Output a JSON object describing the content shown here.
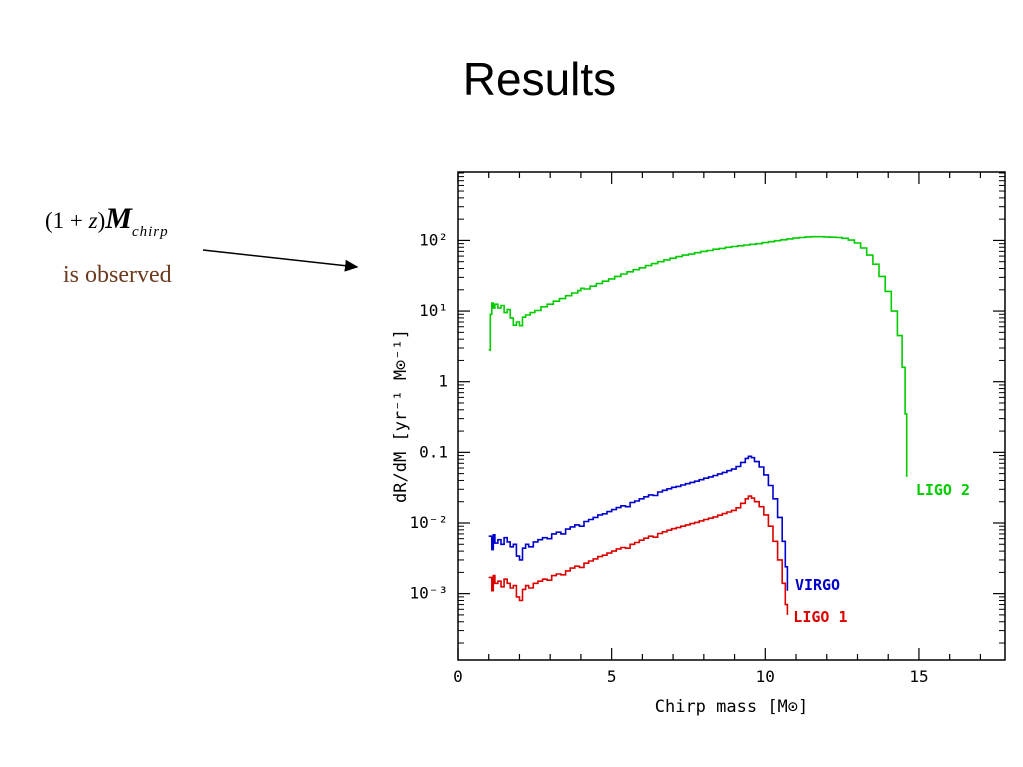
{
  "slide": {
    "title": "Results",
    "formula": {
      "open": "(1 + ",
      "z": "z",
      "close": ")",
      "symbol": "M",
      "subscript": "chirp"
    },
    "observed": "is  observed",
    "observed_color": "#6b3a1e"
  },
  "chart_data": {
    "type": "line",
    "title": "",
    "xlabel": "Chirp mass [M⊙]",
    "ylabel": "dR/dM [yr⁻¹ M⊙⁻¹]",
    "xlim": [
      0,
      17.8
    ],
    "ylog": true,
    "ylim": [
      0.000115,
      930
    ],
    "grid": false,
    "x_major_ticks": [
      0,
      5,
      10,
      15
    ],
    "x_minor_step": 1,
    "y_tick_labels": [
      {
        "log": 2,
        "label": "10²"
      },
      {
        "log": 1,
        "label": "10¹"
      },
      {
        "log": 0,
        "label": "1"
      },
      {
        "log": -1,
        "label": "0.1"
      },
      {
        "log": -2,
        "label": "10⁻²"
      },
      {
        "log": -3,
        "label": "10⁻³"
      }
    ],
    "legend_position": "inside-right",
    "series": [
      {
        "name": "LIGO 2",
        "color": "#00cc00",
        "label_fx": 0.837,
        "label_fy": 0.652,
        "points": [
          [
            1.0,
            2.8
          ],
          [
            1.05,
            9
          ],
          [
            1.1,
            13
          ],
          [
            1.15,
            11
          ],
          [
            1.2,
            12.5
          ],
          [
            1.3,
            11
          ],
          [
            1.4,
            12
          ],
          [
            1.5,
            9.5
          ],
          [
            1.6,
            10.5
          ],
          [
            1.7,
            8
          ],
          [
            1.8,
            6.3
          ],
          [
            1.9,
            7
          ],
          [
            2.0,
            6.2
          ],
          [
            2.1,
            8.2
          ],
          [
            2.2,
            8.8
          ],
          [
            2.35,
            9.5
          ],
          [
            2.5,
            10.2
          ],
          [
            2.7,
            11.5
          ],
          [
            2.9,
            12.5
          ],
          [
            3.1,
            13.8
          ],
          [
            3.3,
            15
          ],
          [
            3.5,
            16.5
          ],
          [
            3.7,
            18
          ],
          [
            3.9,
            19.5
          ],
          [
            4.0,
            21
          ],
          [
            4.1,
            20.5
          ],
          [
            4.3,
            22.5
          ],
          [
            4.5,
            24.5
          ],
          [
            4.7,
            26.5
          ],
          [
            4.9,
            28.5
          ],
          [
            5.1,
            31
          ],
          [
            5.3,
            33.5
          ],
          [
            5.5,
            36
          ],
          [
            5.7,
            38.5
          ],
          [
            5.9,
            41
          ],
          [
            6.1,
            44
          ],
          [
            6.3,
            47
          ],
          [
            6.5,
            50
          ],
          [
            6.7,
            53
          ],
          [
            6.9,
            56
          ],
          [
            7.1,
            59
          ],
          [
            7.3,
            62
          ],
          [
            7.5,
            64
          ],
          [
            7.7,
            67
          ],
          [
            7.9,
            70
          ],
          [
            8.1,
            72
          ],
          [
            8.3,
            75
          ],
          [
            8.5,
            77
          ],
          [
            8.7,
            80
          ],
          [
            8.9,
            82
          ],
          [
            9.1,
            84
          ],
          [
            9.3,
            86
          ],
          [
            9.5,
            88
          ],
          [
            9.7,
            90
          ],
          [
            9.9,
            93
          ],
          [
            10.1,
            96
          ],
          [
            10.3,
            99
          ],
          [
            10.5,
            102
          ],
          [
            10.7,
            105
          ],
          [
            10.9,
            108
          ],
          [
            11.1,
            110
          ],
          [
            11.3,
            112
          ],
          [
            11.5,
            113
          ],
          [
            11.7,
            113
          ],
          [
            11.9,
            112
          ],
          [
            12.1,
            111
          ],
          [
            12.3,
            110
          ],
          [
            12.5,
            107
          ],
          [
            12.7,
            101
          ],
          [
            12.9,
            92
          ],
          [
            13.1,
            78
          ],
          [
            13.3,
            62
          ],
          [
            13.5,
            46
          ],
          [
            13.7,
            31
          ],
          [
            13.9,
            19
          ],
          [
            14.1,
            10
          ],
          [
            14.3,
            4.5
          ],
          [
            14.45,
            1.6
          ],
          [
            14.55,
            0.35
          ],
          [
            14.6,
            0.045
          ]
        ]
      },
      {
        "name": "VIRGO",
        "color": "#0000cc",
        "label_fx": 0.616,
        "label_fy": 0.846,
        "points": [
          [
            1.0,
            0.0065
          ],
          [
            1.1,
            0.0042
          ],
          [
            1.15,
            0.0068
          ],
          [
            1.2,
            0.0052
          ],
          [
            1.3,
            0.0058
          ],
          [
            1.4,
            0.005
          ],
          [
            1.5,
            0.0062
          ],
          [
            1.6,
            0.0054
          ],
          [
            1.7,
            0.0046
          ],
          [
            1.8,
            0.005
          ],
          [
            1.9,
            0.0034
          ],
          [
            2.0,
            0.003
          ],
          [
            2.1,
            0.0044
          ],
          [
            2.2,
            0.005
          ],
          [
            2.3,
            0.0046
          ],
          [
            2.45,
            0.0054
          ],
          [
            2.6,
            0.0058
          ],
          [
            2.75,
            0.0062
          ],
          [
            2.9,
            0.006
          ],
          [
            3.05,
            0.007
          ],
          [
            3.2,
            0.0074
          ],
          [
            3.35,
            0.007
          ],
          [
            3.5,
            0.0082
          ],
          [
            3.65,
            0.0088
          ],
          [
            3.8,
            0.0094
          ],
          [
            3.95,
            0.009
          ],
          [
            4.1,
            0.0105
          ],
          [
            4.25,
            0.0112
          ],
          [
            4.4,
            0.012
          ],
          [
            4.55,
            0.013
          ],
          [
            4.7,
            0.0135
          ],
          [
            4.85,
            0.0145
          ],
          [
            5.0,
            0.0155
          ],
          [
            5.15,
            0.0165
          ],
          [
            5.3,
            0.0175
          ],
          [
            5.45,
            0.017
          ],
          [
            5.6,
            0.0195
          ],
          [
            5.75,
            0.0205
          ],
          [
            5.9,
            0.022
          ],
          [
            6.05,
            0.0235
          ],
          [
            6.2,
            0.025
          ],
          [
            6.35,
            0.0245
          ],
          [
            6.5,
            0.0275
          ],
          [
            6.65,
            0.029
          ],
          [
            6.8,
            0.0305
          ],
          [
            6.95,
            0.032
          ],
          [
            7.1,
            0.033
          ],
          [
            7.25,
            0.0345
          ],
          [
            7.4,
            0.036
          ],
          [
            7.55,
            0.0375
          ],
          [
            7.7,
            0.039
          ],
          [
            7.85,
            0.041
          ],
          [
            8.0,
            0.043
          ],
          [
            8.15,
            0.045
          ],
          [
            8.3,
            0.047
          ],
          [
            8.45,
            0.0495
          ],
          [
            8.6,
            0.052
          ],
          [
            8.75,
            0.055
          ],
          [
            8.9,
            0.058
          ],
          [
            9.05,
            0.063
          ],
          [
            9.2,
            0.072
          ],
          [
            9.35,
            0.082
          ],
          [
            9.45,
            0.088
          ],
          [
            9.55,
            0.084
          ],
          [
            9.65,
            0.074
          ],
          [
            9.8,
            0.062
          ],
          [
            9.95,
            0.048
          ],
          [
            10.1,
            0.034
          ],
          [
            10.25,
            0.022
          ],
          [
            10.4,
            0.012
          ],
          [
            10.55,
            0.0055
          ],
          [
            10.65,
            0.0024
          ],
          [
            10.72,
            0.0011
          ]
        ]
      },
      {
        "name": "LIGO 1",
        "color": "#dd0000",
        "label_fx": 0.613,
        "label_fy": 0.912,
        "points": [
          [
            1.0,
            0.0017
          ],
          [
            1.1,
            0.0011
          ],
          [
            1.15,
            0.0018
          ],
          [
            1.2,
            0.0014
          ],
          [
            1.3,
            0.0015
          ],
          [
            1.4,
            0.00125
          ],
          [
            1.5,
            0.0016
          ],
          [
            1.6,
            0.0014
          ],
          [
            1.7,
            0.0012
          ],
          [
            1.8,
            0.0013
          ],
          [
            1.9,
            0.0009
          ],
          [
            2.0,
            0.0008
          ],
          [
            2.1,
            0.00115
          ],
          [
            2.2,
            0.0013
          ],
          [
            2.3,
            0.0012
          ],
          [
            2.45,
            0.0014
          ],
          [
            2.6,
            0.0015
          ],
          [
            2.75,
            0.0016
          ],
          [
            2.9,
            0.00155
          ],
          [
            3.05,
            0.0018
          ],
          [
            3.2,
            0.0019
          ],
          [
            3.35,
            0.00185
          ],
          [
            3.5,
            0.0021
          ],
          [
            3.65,
            0.0023
          ],
          [
            3.8,
            0.00245
          ],
          [
            3.95,
            0.00235
          ],
          [
            4.1,
            0.0027
          ],
          [
            4.25,
            0.0029
          ],
          [
            4.4,
            0.0031
          ],
          [
            4.55,
            0.00335
          ],
          [
            4.7,
            0.0035
          ],
          [
            4.85,
            0.00375
          ],
          [
            5.0,
            0.004
          ],
          [
            5.15,
            0.0043
          ],
          [
            5.3,
            0.0045
          ],
          [
            5.45,
            0.0044
          ],
          [
            5.6,
            0.005
          ],
          [
            5.75,
            0.0053
          ],
          [
            5.9,
            0.0057
          ],
          [
            6.05,
            0.0061
          ],
          [
            6.2,
            0.0065
          ],
          [
            6.35,
            0.0063
          ],
          [
            6.5,
            0.0071
          ],
          [
            6.65,
            0.0075
          ],
          [
            6.8,
            0.0079
          ],
          [
            6.95,
            0.0083
          ],
          [
            7.1,
            0.0086
          ],
          [
            7.25,
            0.009
          ],
          [
            7.4,
            0.0094
          ],
          [
            7.55,
            0.0098
          ],
          [
            7.7,
            0.0102
          ],
          [
            7.85,
            0.0107
          ],
          [
            8.0,
            0.0112
          ],
          [
            8.15,
            0.0117
          ],
          [
            8.3,
            0.0122
          ],
          [
            8.45,
            0.0129
          ],
          [
            8.6,
            0.0136
          ],
          [
            8.75,
            0.0143
          ],
          [
            8.9,
            0.0151
          ],
          [
            9.05,
            0.0164
          ],
          [
            9.2,
            0.019
          ],
          [
            9.35,
            0.022
          ],
          [
            9.45,
            0.024
          ],
          [
            9.55,
            0.0225
          ],
          [
            9.65,
            0.02
          ],
          [
            9.8,
            0.017
          ],
          [
            9.95,
            0.013
          ],
          [
            10.1,
            0.009
          ],
          [
            10.25,
            0.0055
          ],
          [
            10.4,
            0.003
          ],
          [
            10.55,
            0.0014
          ],
          [
            10.65,
            0.0007
          ],
          [
            10.72,
            0.0005
          ]
        ]
      }
    ]
  }
}
